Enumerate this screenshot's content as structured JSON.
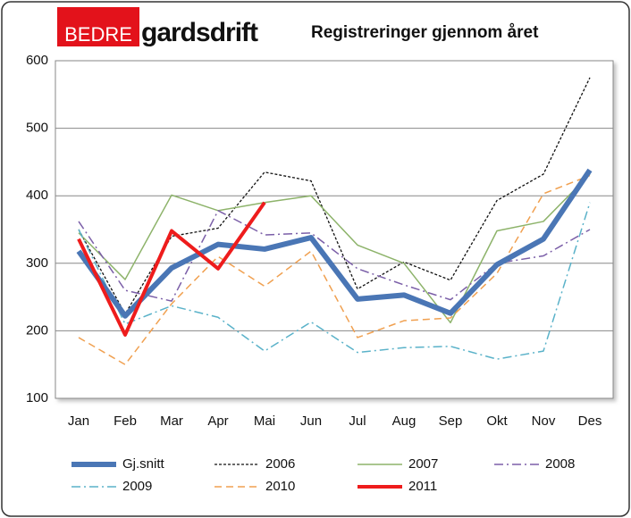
{
  "logo": {
    "prefix": "BEDRE",
    "name": "gardsdrift"
  },
  "chart_data": {
    "type": "line",
    "title": "Registreringer gjennom året",
    "categories": [
      "Jan",
      "Feb",
      "Mar",
      "Apr",
      "Mai",
      "Jun",
      "Jul",
      "Aug",
      "Sep",
      "Okt",
      "Nov",
      "Des"
    ],
    "ylim": [
      100,
      600
    ],
    "yticks": [
      100,
      200,
      300,
      400,
      500,
      600
    ],
    "grid": true,
    "series": [
      {
        "name": "Gj.snitt",
        "color": "#4a76b5",
        "style": "thick",
        "values": [
          318,
          222,
          293,
          328,
          321,
          338,
          247,
          253,
          226,
          298,
          336,
          438
        ]
      },
      {
        "name": "2006",
        "color": "#111111",
        "style": "dotted",
        "values": [
          350,
          225,
          340,
          352,
          435,
          422,
          262,
          302,
          275,
          393,
          432,
          575
        ]
      },
      {
        "name": "2007",
        "color": "#8db36a",
        "style": "solid",
        "values": [
          345,
          276,
          401,
          378,
          390,
          400,
          327,
          300,
          212,
          348,
          362,
          432
        ]
      },
      {
        "name": "2008",
        "color": "#7b5fa8",
        "style": "dashdot",
        "values": [
          362,
          260,
          244,
          378,
          342,
          345,
          292,
          268,
          246,
          300,
          311,
          350
        ]
      },
      {
        "name": "2009",
        "color": "#5ab2c9",
        "style": "dashdot",
        "values": [
          350,
          210,
          237,
          220,
          170,
          213,
          168,
          175,
          177,
          158,
          170,
          390
        ]
      },
      {
        "name": "2010",
        "color": "#f0a050",
        "style": "dashed",
        "values": [
          190,
          150,
          240,
          310,
          266,
          318,
          190,
          215,
          219,
          285,
          403,
          430
        ]
      },
      {
        "name": "2011",
        "color": "#ee1c1c",
        "style": "bold",
        "values": [
          336,
          194,
          348,
          292,
          390,
          null,
          null,
          null,
          null,
          null,
          null,
          null
        ]
      }
    ]
  }
}
